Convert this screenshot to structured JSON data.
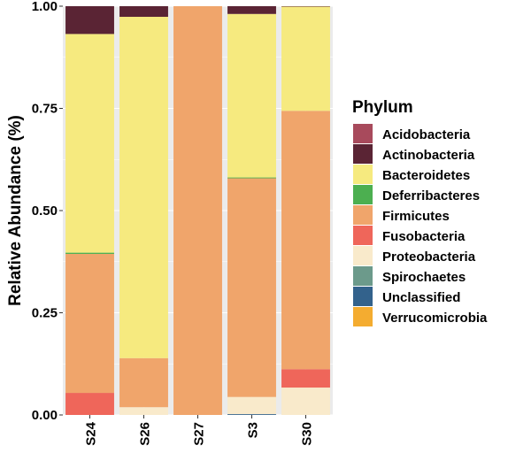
{
  "chart_data": {
    "type": "bar",
    "stacked": true,
    "categories": [
      "S24",
      "S26",
      "S27",
      "S3",
      "S30"
    ],
    "ylabel": "Relative Abundance (%)",
    "xlabel": "",
    "ylim": [
      0,
      1
    ],
    "y_ticks": [
      "0.00",
      "0.25",
      "0.50",
      "0.75",
      "1.00"
    ],
    "grid": true,
    "legend_title": "Phylum",
    "legend_position": "right",
    "series": [
      {
        "name": "Acidobacteria",
        "color": "#A84A5C",
        "values": [
          0.0,
          0.0,
          0.0,
          0.0,
          0.0
        ]
      },
      {
        "name": "Actinobacteria",
        "color": "#5A2434",
        "values": [
          0.068,
          0.026,
          0.0,
          0.019,
          0.001
        ]
      },
      {
        "name": "Bacteroidetes",
        "color": "#F6EA7F",
        "values": [
          0.535,
          0.835,
          0.0,
          0.4,
          0.255
        ]
      },
      {
        "name": "Deferribacteres",
        "color": "#4CAF50",
        "values": [
          0.003,
          0.0,
          0.0,
          0.002,
          0.0
        ]
      },
      {
        "name": "Firmicutes",
        "color": "#F0A56B",
        "values": [
          0.34,
          0.12,
          1.0,
          0.535,
          0.632
        ]
      },
      {
        "name": "Fusobacteria",
        "color": "#EF665A",
        "values": [
          0.054,
          0.0,
          0.0,
          0.0,
          0.045
        ]
      },
      {
        "name": "Proteobacteria",
        "color": "#F9EACB",
        "values": [
          0.0,
          0.019,
          0.0,
          0.042,
          0.067
        ]
      },
      {
        "name": "Spirochaetes",
        "color": "#6C9A8B",
        "values": [
          0.0,
          0.0,
          0.0,
          0.0,
          0.0
        ]
      },
      {
        "name": "Unclassified",
        "color": "#33628C",
        "values": [
          0.0,
          0.0,
          0.0,
          0.002,
          0.0
        ]
      },
      {
        "name": "Verrucomicrobia",
        "color": "#F4AC30",
        "values": [
          0.0,
          0.0,
          0.0,
          0.0,
          0.0
        ]
      }
    ]
  }
}
